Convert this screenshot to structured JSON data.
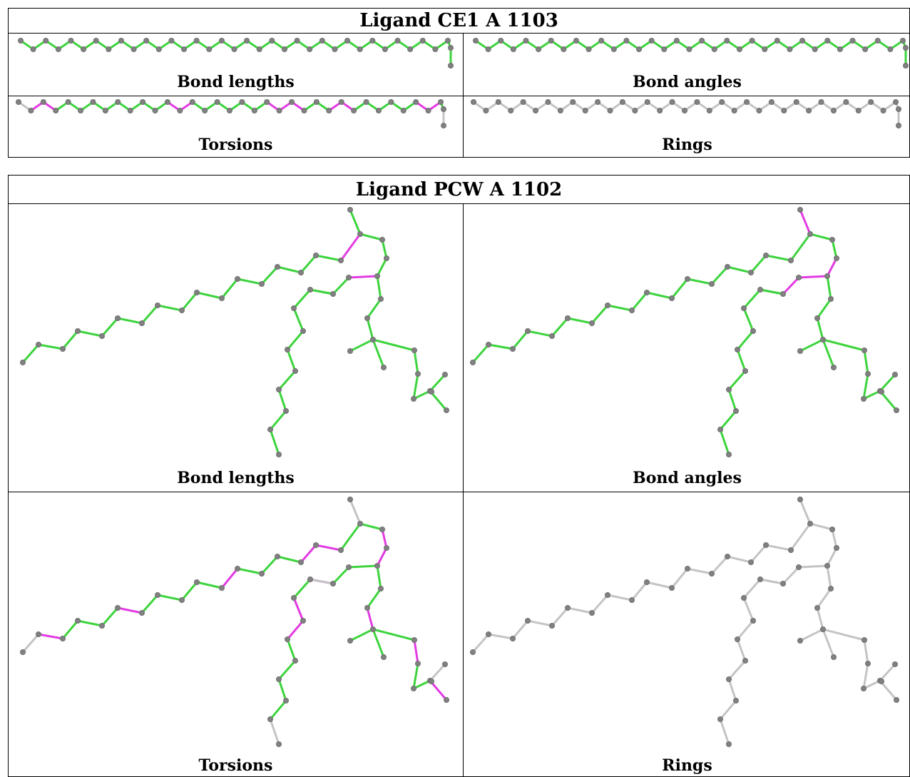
{
  "colors": {
    "good": "#3dd43d",
    "outlier": "#e23be2",
    "neutral": "#c4c4c4",
    "atom": "#808080"
  },
  "tables": [
    {
      "title": "Ligand CE1 A 1103",
      "panels": [
        {
          "label": "Bond lengths",
          "scheme": "lengths"
        },
        {
          "label": "Bond angles",
          "scheme": "angles"
        },
        {
          "label": "Torsions",
          "scheme": "torsions"
        },
        {
          "label": "Rings",
          "scheme": "rings"
        }
      ]
    },
    {
      "title": "Ligand PCW A 1102",
      "panels": [
        {
          "label": "Bond lengths",
          "scheme": "lengths"
        },
        {
          "label": "Bond angles",
          "scheme": "angles"
        },
        {
          "label": "Torsions",
          "scheme": "torsions"
        },
        {
          "label": "Rings",
          "scheme": "rings"
        }
      ]
    }
  ]
}
